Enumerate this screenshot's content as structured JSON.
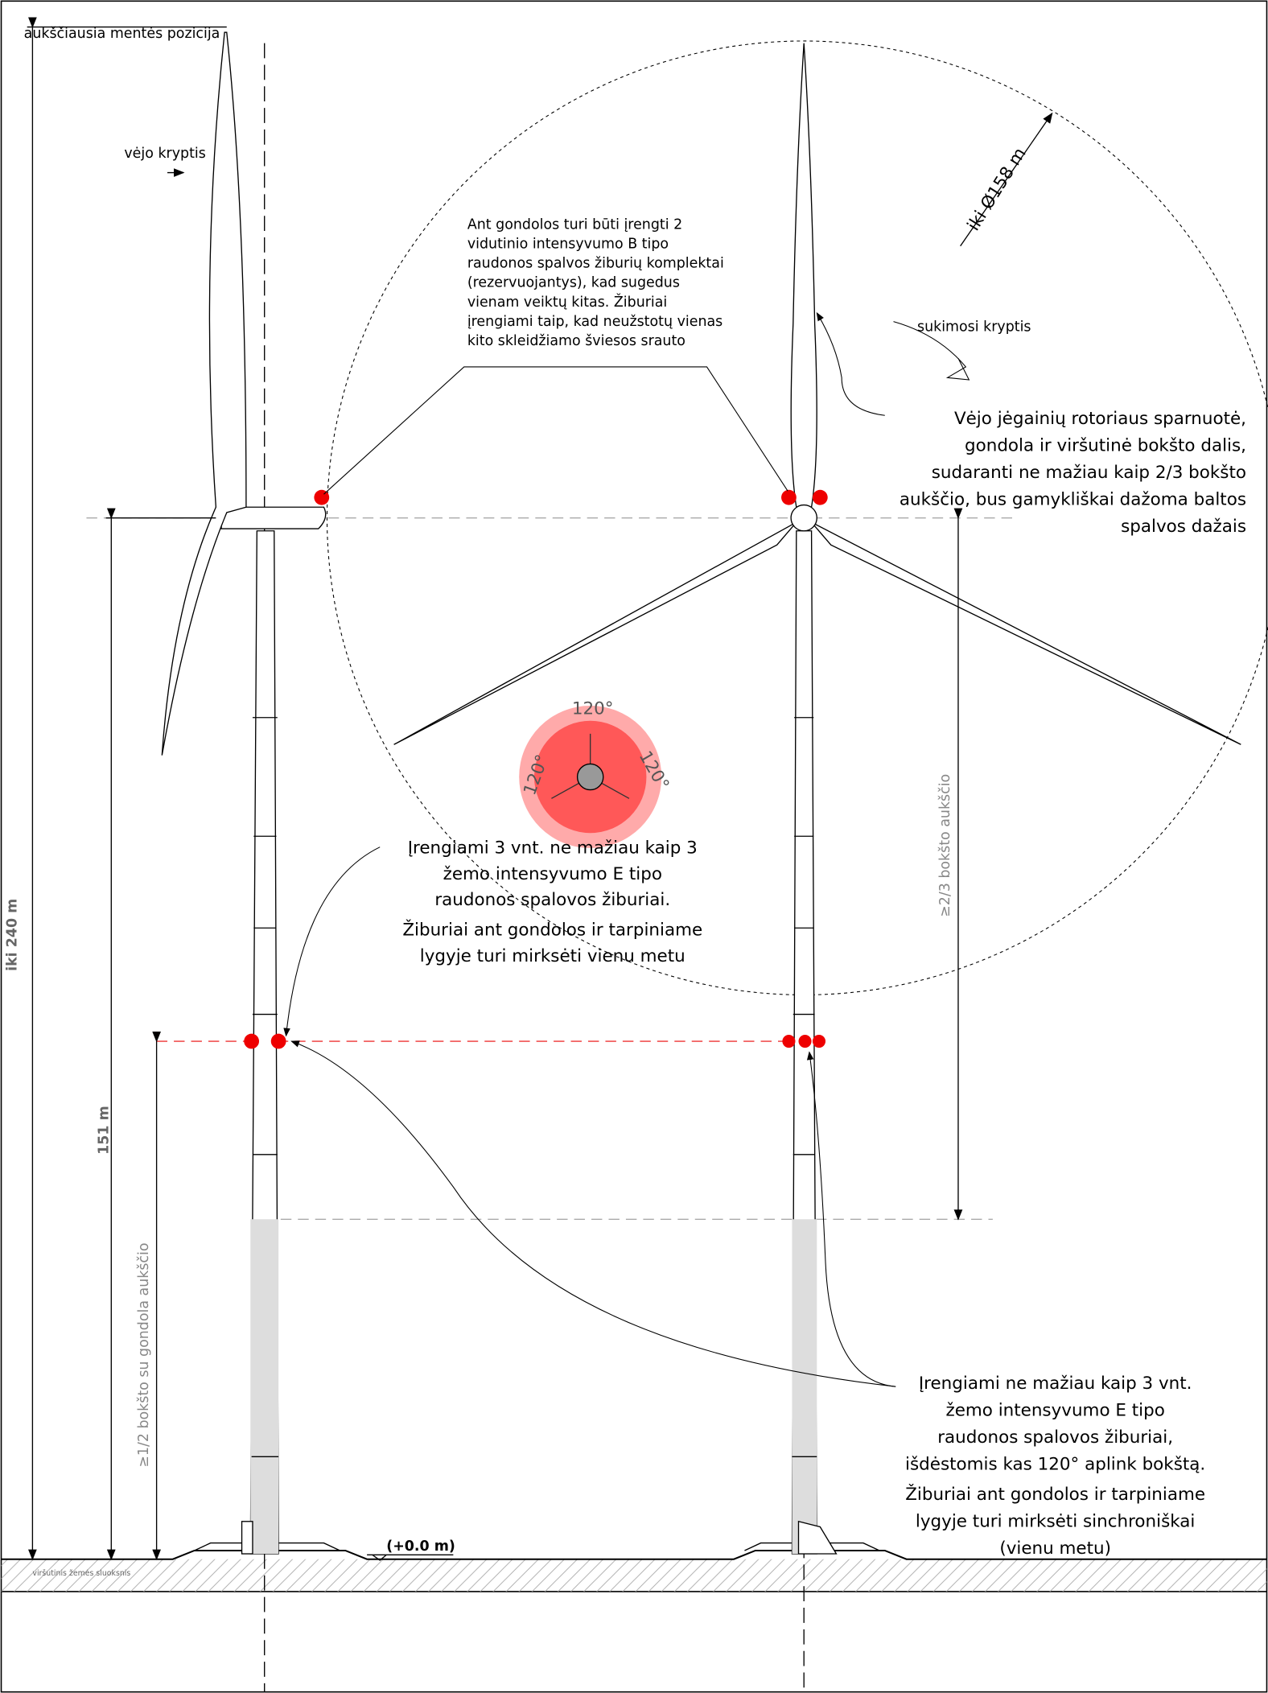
{
  "labels": {
    "top_blade": "aukščiausia mentės pozicija",
    "wind_direction": "vėjo kryptis",
    "rotor_diameter": "iki Ø158 m",
    "rotation_direction": "sukimosi kryptis",
    "two_thirds": "≥2/3 bokšto aukščio",
    "height_total": "iki 240 m",
    "height_nacelle": "151 m",
    "half_height": "≥1/2 bokšto su gondola aukščio",
    "angle_left": "120°",
    "angle_right": "120°",
    "angle_bottom": "120°",
    "ground_level": "(+0.0 m)",
    "topsoil": "viršutinis žemės sluoksnis"
  },
  "notes": {
    "nacelle": [
      "Ant gondolos turi būti įrengti 2",
      "vidutinio intensyvumo B tipo",
      "raudonos spalvos žiburių komplektai",
      "(rezervuojantys), kad sugedus",
      "vienam veiktų kitas. Žiburiai",
      "įrengiami taip, kad neužstotų vienas",
      "kito skleidžiamo šviesos srauto"
    ],
    "paint": [
      "Vėjo jėgainių rotoriaus sparnuotė,",
      "gondola ir viršutinė bokšto dalis,",
      "sudaranti ne mažiau kaip 2/3 bokšto",
      "aukščio, bus gamykliškai dažoma baltos",
      "spalvos dažais"
    ],
    "middle_left": [
      "Įrengiami 3 vnt. ne mažiau kaip 3",
      "žemo intensyvumo E tipo",
      "raudonos spalovos žiburiai.",
      "Žiburiai ant gondolos ir tarpiniame",
      "lygyje turi mirksėti vienu metu"
    ],
    "middle_right": [
      "Įrengiami ne mažiau kaip 3 vnt.",
      "žemo intensyvumo E tipo",
      "raudonos spalovos žiburiai,",
      "išdėstomis kas 120° aplink bokštą.",
      "Žiburiai ant gondolos ir tarpiniame",
      "lygyje turi mirksėti sinchroniškai",
      "(vienu metu)"
    ]
  }
}
